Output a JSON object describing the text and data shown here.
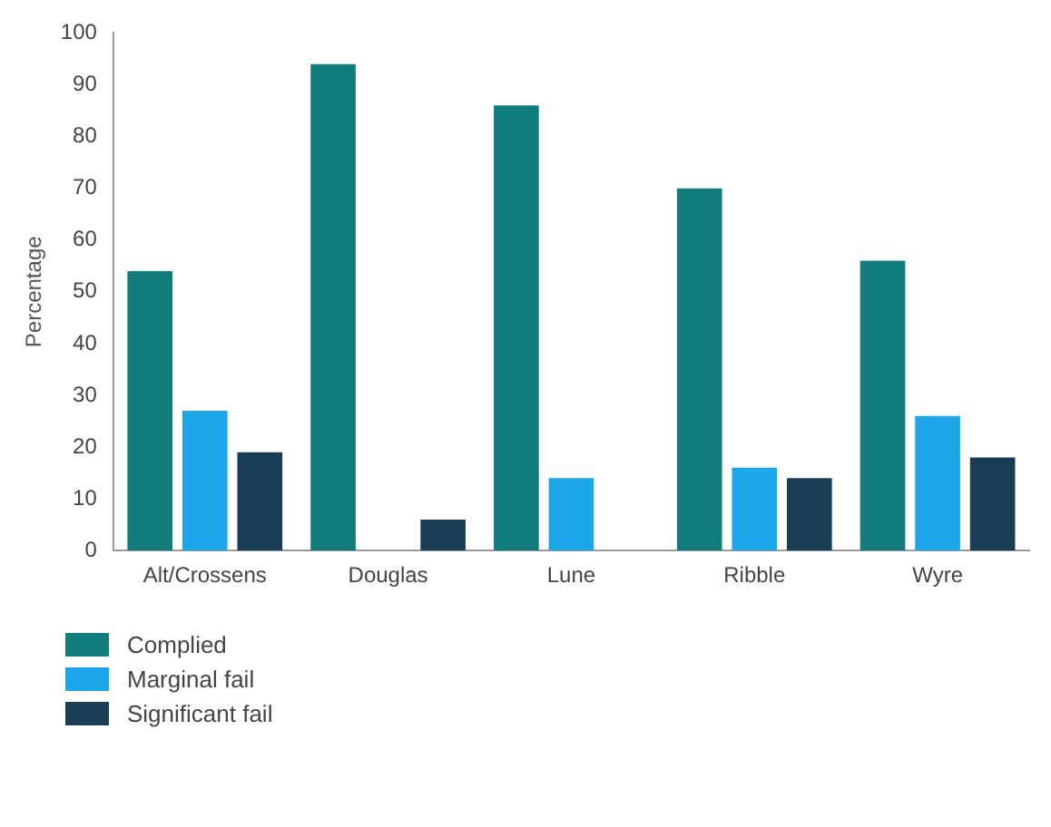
{
  "chart_data": {
    "type": "bar",
    "ylabel": "Percentage",
    "categories": [
      "Alt/Crossens",
      "Douglas",
      "Lune",
      "Ribble",
      "Wyre"
    ],
    "series": [
      {
        "name": "Complied",
        "color": "#127b7c",
        "values": [
          54,
          94,
          86,
          70,
          56
        ]
      },
      {
        "name": "Marginal fail",
        "color": "#1ea6ea",
        "values": [
          27,
          0,
          14,
          16,
          26
        ]
      },
      {
        "name": "Significant fail",
        "color": "#1a3d56",
        "values": [
          19,
          6,
          0,
          14,
          18
        ]
      }
    ],
    "ylim": [
      0,
      100
    ],
    "yticks": [
      0,
      10,
      20,
      30,
      40,
      50,
      60,
      70,
      80,
      90,
      100
    ],
    "grid": false,
    "legend": "bottom left"
  }
}
